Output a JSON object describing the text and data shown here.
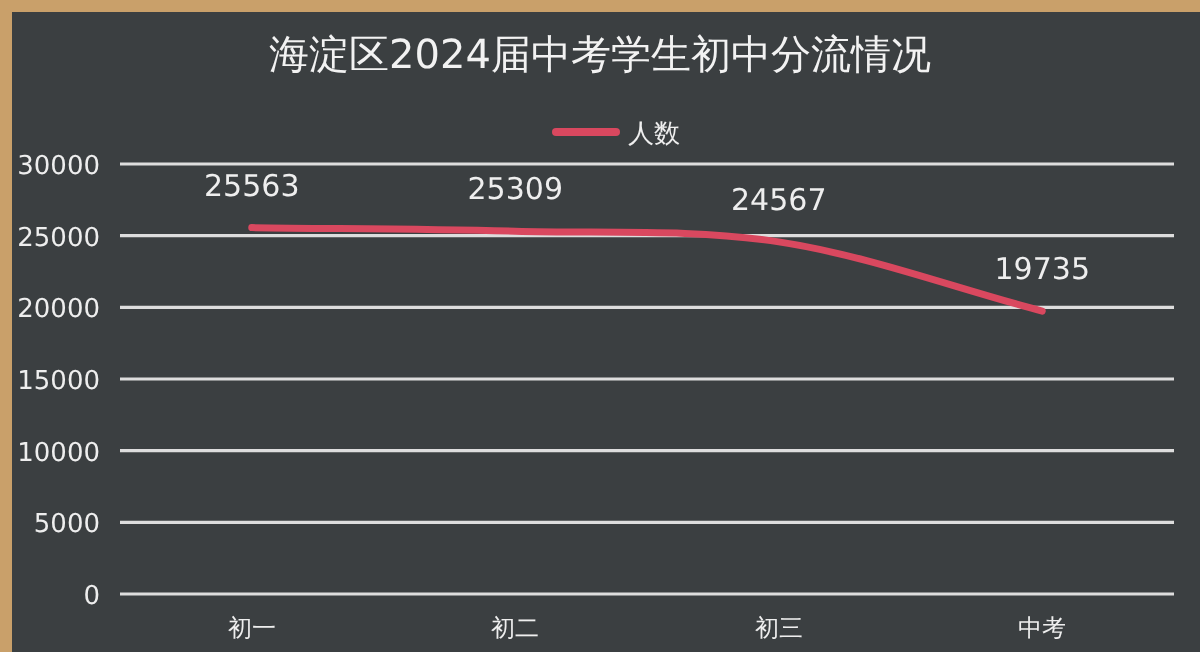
{
  "chart_data": {
    "type": "line",
    "title": "海淀区2024届中考学生初中分流情况",
    "categories": [
      "初一",
      "初二",
      "初三",
      "中考"
    ],
    "series": [
      {
        "name": "人数",
        "color": "#d9485f",
        "values": [
          25563,
          25309,
          24567,
          19735
        ]
      }
    ],
    "ylim": [
      0,
      30000
    ],
    "yticks": [
      0,
      5000,
      10000,
      15000,
      20000,
      25000,
      30000
    ],
    "grid": "y",
    "legend": "top",
    "data_labels": true,
    "marker": "none",
    "line_style": "solid"
  }
}
